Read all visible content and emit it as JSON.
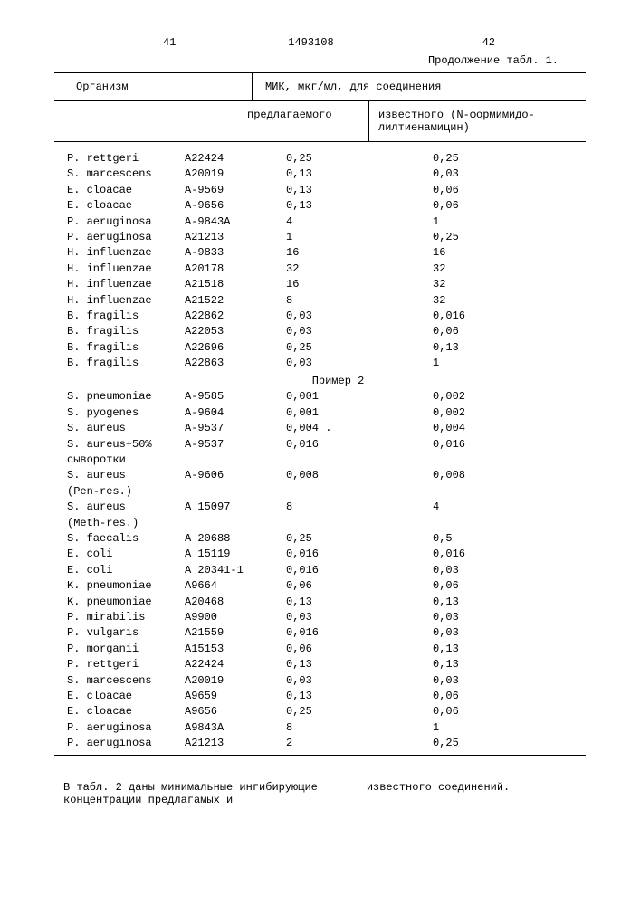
{
  "header": {
    "left_num": "41",
    "center_num": "1493108",
    "right_num": "42",
    "continuation": "Продолжение табл. 1."
  },
  "table": {
    "col_organism": "Организм",
    "col_mic": "МИК, мкг/мл, для соединения",
    "col_proposed": "предлагаемого",
    "col_known": "известного (N-формимидо-лилтиенамицин)",
    "section2_label": "Пример 2",
    "rows1": [
      {
        "org": "P. rettgeri",
        "code": "A22424",
        "v1": "0,25",
        "v2": "0,25"
      },
      {
        "org": "S. marcescens",
        "code": "A20019",
        "v1": "0,13",
        "v2": "0,03"
      },
      {
        "org": "E. cloacae",
        "code": "A-9569",
        "v1": "0,13",
        "v2": "0,06"
      },
      {
        "org": "E. cloacae",
        "code": "A-9656",
        "v1": "0,13",
        "v2": "0,06"
      },
      {
        "org": "P. aeruginosa",
        "code": "A-9843A",
        "v1": "4",
        "v2": "1"
      },
      {
        "org": "P. aeruginosa",
        "code": "A21213",
        "v1": "1",
        "v2": "0,25"
      },
      {
        "org": "H. influenzae",
        "code": "A-9833",
        "v1": "16",
        "v2": "16"
      },
      {
        "org": "H. influenzae",
        "code": "A20178",
        "v1": "32",
        "v2": "32"
      },
      {
        "org": "H. influenzae",
        "code": "A21518",
        "v1": "16",
        "v2": "32"
      },
      {
        "org": "H. influenzae",
        "code": "A21522",
        "v1": "8",
        "v2": "32"
      },
      {
        "org": "B. fragilis",
        "code": "A22862",
        "v1": "0,03",
        "v2": "0,016"
      },
      {
        "org": "B. fragilis",
        "code": "A22053",
        "v1": "0,03",
        "v2": "0,06"
      },
      {
        "org": "B. fragilis",
        "code": "A22696",
        "v1": "0,25",
        "v2": "0,13"
      },
      {
        "org": "B. fragilis",
        "code": "A22863",
        "v1": "0,03",
        "v2": "1"
      }
    ],
    "rows2": [
      {
        "org": "S. pneumoniae",
        "code": "A-9585",
        "v1": "0,001",
        "v2": "0,002"
      },
      {
        "org": "S. pyogenes",
        "code": "A-9604",
        "v1": "0,001",
        "v2": "0,002"
      },
      {
        "org": "S. aureus",
        "code": "A-9537",
        "v1": "0,004 .",
        "v2": "0,004"
      },
      {
        "org": "S. aureus+50%",
        "code": "A-9537",
        "v1": "0,016",
        "v2": "0,016"
      },
      {
        "org": "сыворотки",
        "code": "",
        "v1": "",
        "v2": ""
      },
      {
        "org": "S. aureus",
        "code": "A-9606",
        "v1": "0,008",
        "v2": "0,008"
      },
      {
        "org": "(Pen-res.)",
        "code": "",
        "v1": "",
        "v2": ""
      },
      {
        "org": "S. aureus",
        "code": "A 15097",
        "v1": "8",
        "v2": "4"
      },
      {
        "org": "(Meth-res.)",
        "code": "",
        "v1": "",
        "v2": ""
      },
      {
        "org": "S. faecalis",
        "code": "A 20688",
        "v1": "0,25",
        "v2": "0,5"
      },
      {
        "org": "E. coli",
        "code": "A 15119",
        "v1": "0,016",
        "v2": "0,016"
      },
      {
        "org": "E. coli",
        "code": "A 20341-1",
        "v1": "0,016",
        "v2": "0,03"
      },
      {
        "org": "K. pneumoniae",
        "code": "A9664",
        "v1": "0,06",
        "v2": "0,06"
      },
      {
        "org": "K. pneumoniae",
        "code": "A20468",
        "v1": "0,13",
        "v2": "0,13"
      },
      {
        "org": "P. mirabilis",
        "code": "A9900",
        "v1": "0,03",
        "v2": "0,03"
      },
      {
        "org": "P. vulgaris",
        "code": "A21559",
        "v1": "0,016",
        "v2": "0,03"
      },
      {
        "org": "P. morganii",
        "code": "A15153",
        "v1": "0,06",
        "v2": "0,13"
      },
      {
        "org": "P. rettgeri",
        "code": "A22424",
        "v1": "0,13",
        "v2": "0,13"
      },
      {
        "org": "S. marcescens",
        "code": "A20019",
        "v1": "0,03",
        "v2": "0,03"
      },
      {
        "org": "E. cloacae",
        "code": "A9659",
        "v1": "0,13",
        "v2": "0,06"
      },
      {
        "org": "E. cloacae",
        "code": "A9656",
        "v1": "0,25",
        "v2": "0,06"
      },
      {
        "org": "P. aeruginosa",
        "code": "A9843A",
        "v1": "8",
        "v2": "1"
      },
      {
        "org": "P. aeruginosa",
        "code": "A21213",
        "v1": "2",
        "v2": "0,25"
      }
    ]
  },
  "footer": {
    "left": "В табл. 2 даны минимальные ингибирующие концентрации предлагамых и",
    "right": "известного соединений."
  }
}
